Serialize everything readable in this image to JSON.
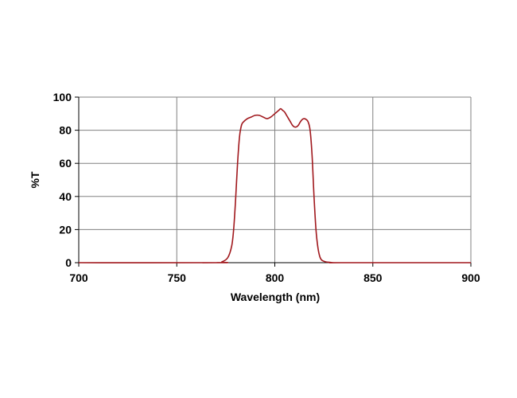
{
  "chart_data": {
    "type": "line",
    "title": "",
    "xlabel": "Wavelength (nm)",
    "ylabel": "%T",
    "xlim": [
      700,
      900
    ],
    "ylim": [
      0,
      100
    ],
    "x_ticks": [
      700,
      750,
      800,
      850,
      900
    ],
    "y_ticks": [
      0,
      20,
      40,
      60,
      80,
      100
    ],
    "grid": true,
    "legend": "none",
    "series": [
      {
        "color": "#a0171c",
        "x": [
          700,
          770,
          773,
          776,
          778,
          779,
          780,
          781,
          782,
          783,
          784,
          786,
          788,
          790,
          792,
          794,
          796,
          798,
          800,
          801,
          802,
          803,
          804,
          805,
          806,
          807,
          808,
          809,
          810,
          811,
          812,
          813,
          814,
          815,
          816,
          817,
          818,
          819,
          820,
          821,
          822,
          823,
          824,
          826,
          828,
          830,
          834,
          900
        ],
        "y": [
          0,
          0,
          0.5,
          3,
          10,
          20,
          38,
          60,
          76,
          83,
          85,
          87,
          88,
          89,
          89,
          88,
          87,
          88,
          90,
          91,
          92,
          93,
          92,
          91,
          89,
          87,
          85,
          83,
          82,
          82,
          83,
          85,
          86.5,
          87,
          86.5,
          85,
          80,
          65,
          40,
          20,
          9,
          3.5,
          1.5,
          0.5,
          0.2,
          0,
          0,
          0
        ]
      }
    ]
  }
}
